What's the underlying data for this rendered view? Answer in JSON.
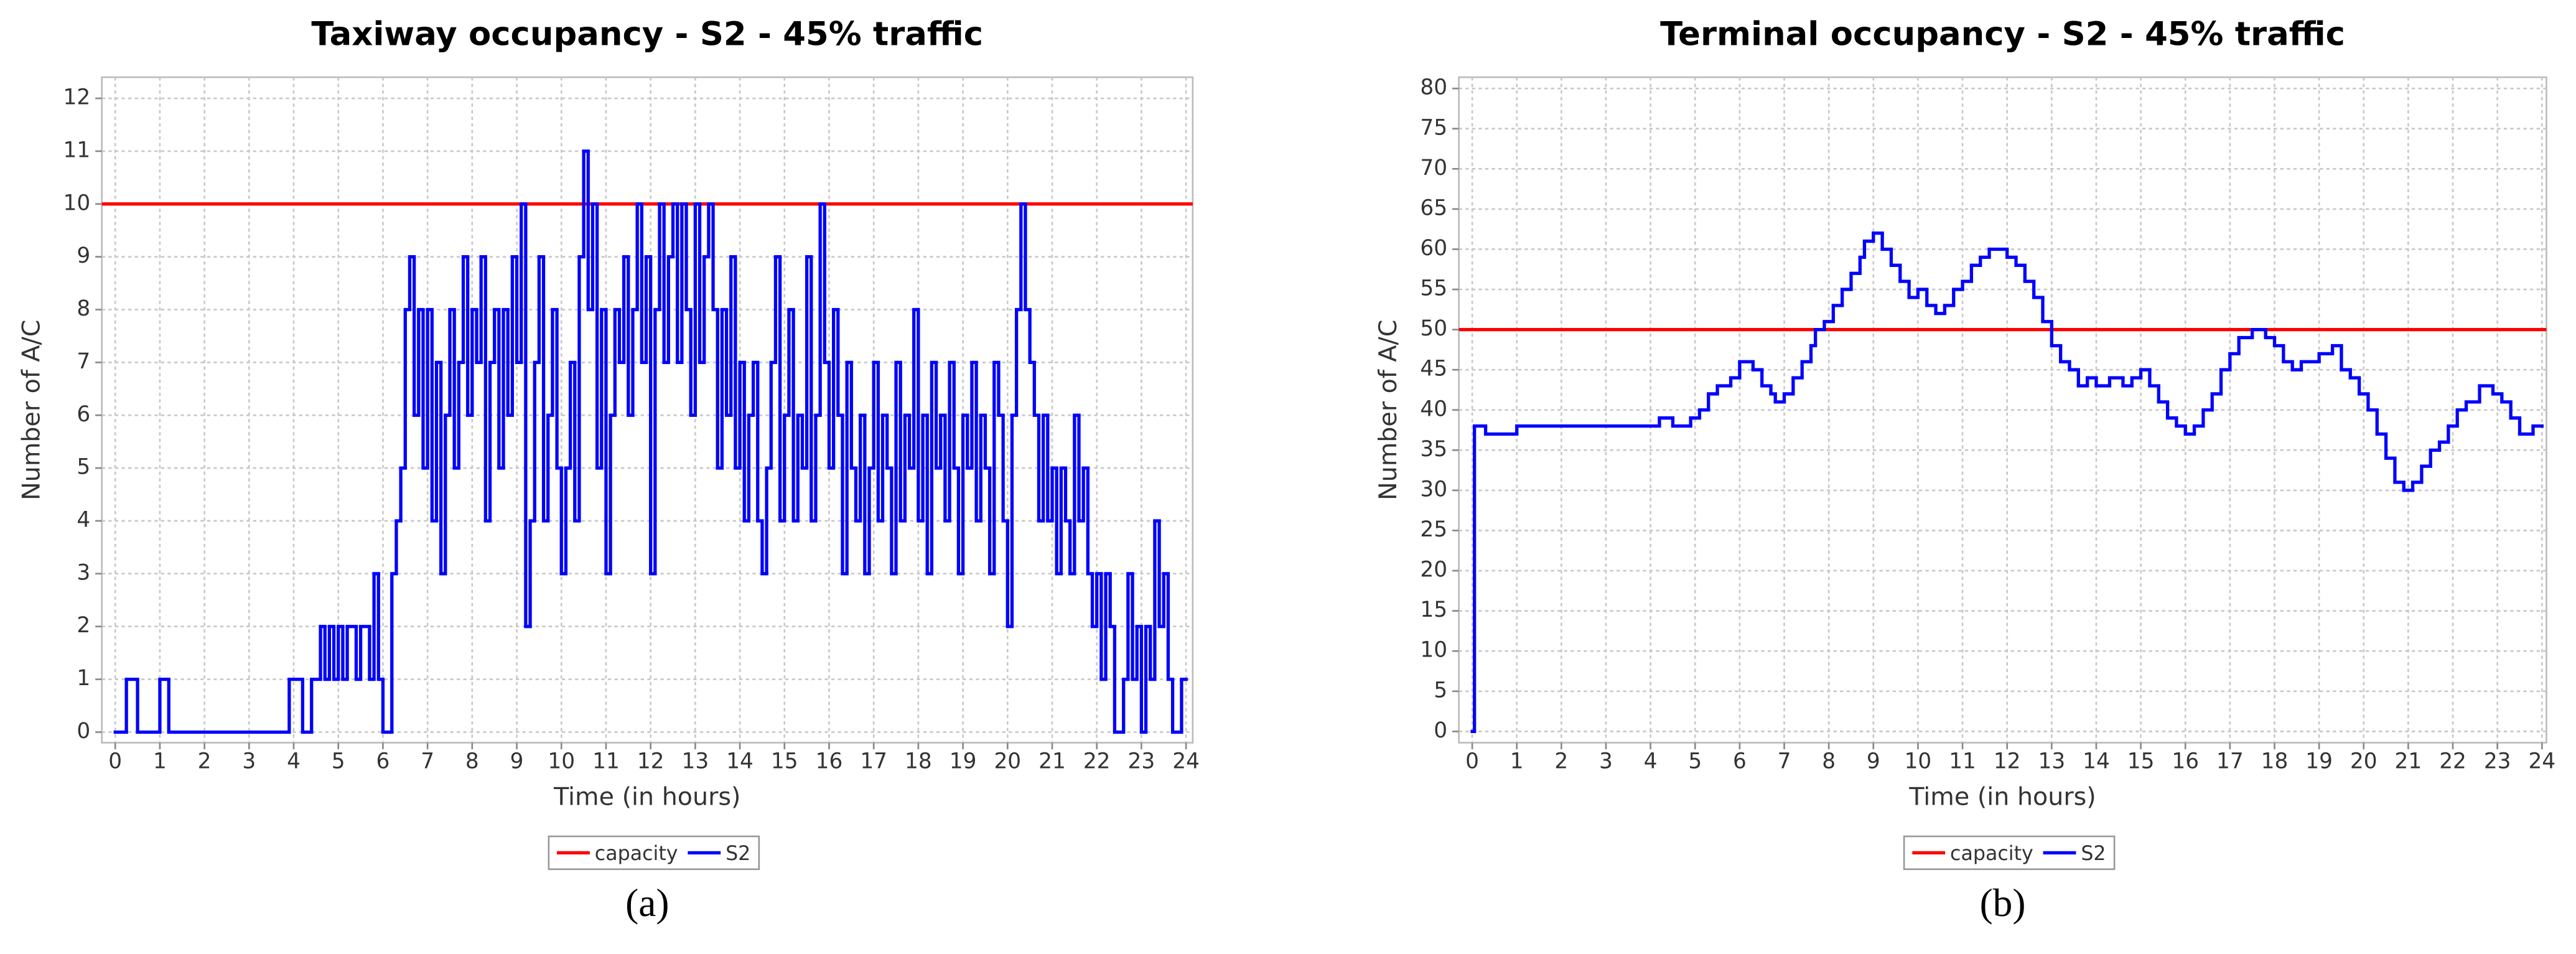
{
  "chart_data": [
    {
      "type": "line",
      "drawstyle": "steps-post",
      "title": "Taxiway occupancy - S2 - 45% traffic",
      "x_label": "Time (in hours)",
      "y_label": "Number of A/C",
      "caption": "(a)",
      "xlim": [
        -0.3,
        24.15
      ],
      "ylim": [
        -0.2,
        12.4
      ],
      "grid": true,
      "xticks": [
        0,
        1,
        2,
        3,
        4,
        5,
        6,
        7,
        8,
        9,
        10,
        11,
        12,
        13,
        14,
        15,
        16,
        17,
        18,
        19,
        20,
        21,
        22,
        23,
        24
      ],
      "yticks": [
        0,
        1,
        2,
        3,
        4,
        5,
        6,
        7,
        8,
        9,
        10,
        11,
        12
      ],
      "series": [
        {
          "name": "capacity",
          "color": "#ff0000",
          "values": [
            10
          ]
        },
        {
          "name": "S2",
          "color": "#0000ff",
          "x": [
            0,
            0.25,
            0.5,
            1,
            1.2,
            3.9,
            4.2,
            4.4,
            4.6,
            4.7,
            4.8,
            4.9,
            5.0,
            5.1,
            5.2,
            5.4,
            5.5,
            5.7,
            5.8,
            5.9,
            6.0,
            6.2,
            6.3,
            6.4,
            6.5,
            6.6,
            6.7,
            6.8,
            6.9,
            7.0,
            7.1,
            7.2,
            7.3,
            7.4,
            7.5,
            7.6,
            7.7,
            7.8,
            7.9,
            8.0,
            8.1,
            8.2,
            8.3,
            8.4,
            8.5,
            8.6,
            8.7,
            8.8,
            8.9,
            9.0,
            9.1,
            9.2,
            9.3,
            9.4,
            9.5,
            9.6,
            9.7,
            9.8,
            9.9,
            10.0,
            10.1,
            10.2,
            10.3,
            10.4,
            10.5,
            10.6,
            10.7,
            10.8,
            10.9,
            11.0,
            11.1,
            11.2,
            11.3,
            11.4,
            11.5,
            11.6,
            11.7,
            11.8,
            11.9,
            12.0,
            12.1,
            12.2,
            12.3,
            12.4,
            12.5,
            12.6,
            12.7,
            12.8,
            12.9,
            13.0,
            13.1,
            13.2,
            13.3,
            13.4,
            13.5,
            13.6,
            13.7,
            13.8,
            13.9,
            14.0,
            14.1,
            14.2,
            14.3,
            14.4,
            14.5,
            14.6,
            14.7,
            14.8,
            14.9,
            15.0,
            15.1,
            15.2,
            15.3,
            15.4,
            15.5,
            15.6,
            15.7,
            15.8,
            15.9,
            16.0,
            16.1,
            16.2,
            16.3,
            16.4,
            16.5,
            16.6,
            16.7,
            16.8,
            16.9,
            17.0,
            17.1,
            17.2,
            17.3,
            17.4,
            17.5,
            17.6,
            17.7,
            17.8,
            17.9,
            18.0,
            18.1,
            18.2,
            18.3,
            18.4,
            18.5,
            18.6,
            18.7,
            18.8,
            18.9,
            19.0,
            19.1,
            19.2,
            19.3,
            19.4,
            19.5,
            19.6,
            19.7,
            19.8,
            19.9,
            20.0,
            20.1,
            20.2,
            20.3,
            20.4,
            20.5,
            20.6,
            20.7,
            20.8,
            20.9,
            21.0,
            21.1,
            21.2,
            21.3,
            21.4,
            21.5,
            21.6,
            21.7,
            21.8,
            21.9,
            22.0,
            22.1,
            22.2,
            22.3,
            22.4,
            22.6,
            22.7,
            22.8,
            22.9,
            23.0,
            23.1,
            23.2,
            23.3,
            23.4,
            23.5,
            23.6,
            23.7,
            23.9,
            24
          ],
          "values": [
            0,
            1,
            0,
            1,
            0,
            1,
            0,
            1,
            2,
            1,
            2,
            1,
            2,
            1,
            2,
            1,
            2,
            1,
            3,
            1,
            0,
            3,
            4,
            5,
            8,
            9,
            6,
            8,
            5,
            8,
            4,
            7,
            3,
            6,
            8,
            5,
            7,
            9,
            6,
            8,
            7,
            9,
            4,
            7,
            8,
            5,
            8,
            6,
            9,
            7,
            10,
            2,
            4,
            7,
            9,
            4,
            6,
            8,
            5,
            3,
            5,
            7,
            4,
            9,
            11,
            8,
            10,
            5,
            8,
            3,
            6,
            8,
            7,
            9,
            6,
            8,
            10,
            7,
            9,
            3,
            8,
            10,
            7,
            9,
            10,
            7,
            10,
            8,
            6,
            10,
            7,
            9,
            10,
            8,
            5,
            8,
            6,
            9,
            5,
            7,
            4,
            6,
            7,
            4,
            3,
            5,
            7,
            9,
            4,
            6,
            8,
            4,
            6,
            5,
            9,
            4,
            6,
            10,
            7,
            5,
            8,
            6,
            3,
            7,
            5,
            4,
            6,
            3,
            5,
            7,
            4,
            6,
            5,
            3,
            7,
            4,
            6,
            5,
            8,
            4,
            6,
            3,
            7,
            5,
            6,
            4,
            7,
            5,
            3,
            6,
            5,
            7,
            4,
            6,
            5,
            3,
            7,
            6,
            4,
            2,
            6,
            8,
            10,
            8,
            7,
            6,
            4,
            6,
            4,
            5,
            3,
            5,
            4,
            3,
            6,
            4,
            5,
            3,
            2,
            3,
            1,
            3,
            2,
            0,
            1,
            3,
            1,
            2,
            0,
            2,
            1,
            4,
            2,
            3,
            1,
            0,
            1,
            1
          ]
        }
      ]
    },
    {
      "type": "line",
      "drawstyle": "steps-post",
      "title": "Terminal occupancy - S2 - 45% traffic",
      "x_label": "Time (in hours)",
      "y_label": "Number of A/C",
      "caption": "(b)",
      "xlim": [
        -0.3,
        24.1
      ],
      "ylim": [
        -1.4,
        81.4
      ],
      "grid": true,
      "xticks": [
        0,
        1,
        2,
        3,
        4,
        5,
        6,
        7,
        8,
        9,
        10,
        11,
        12,
        13,
        14,
        15,
        16,
        17,
        18,
        19,
        20,
        21,
        22,
        23,
        24
      ],
      "yticks": [
        0,
        5,
        10,
        15,
        20,
        25,
        30,
        35,
        40,
        45,
        50,
        55,
        60,
        65,
        70,
        75,
        80
      ],
      "series": [
        {
          "name": "capacity",
          "color": "#ff0000",
          "values": [
            50
          ]
        },
        {
          "name": "S2",
          "color": "#0000ff",
          "x": [
            0,
            0.05,
            0.3,
            1,
            4.2,
            4.5,
            4.9,
            5.1,
            5.3,
            5.5,
            5.8,
            6.0,
            6.3,
            6.5,
            6.7,
            6.8,
            7.0,
            7.2,
            7.4,
            7.6,
            7.7,
            7.9,
            8.1,
            8.3,
            8.5,
            8.7,
            8.8,
            9.0,
            9.2,
            9.4,
            9.6,
            9.8,
            10.0,
            10.2,
            10.4,
            10.6,
            10.8,
            11.0,
            11.2,
            11.4,
            11.6,
            12.0,
            12.2,
            12.4,
            12.6,
            12.8,
            13.0,
            13.2,
            13.4,
            13.6,
            13.8,
            14.0,
            14.3,
            14.6,
            14.8,
            15.0,
            15.2,
            15.4,
            15.6,
            15.8,
            16.0,
            16.2,
            16.4,
            16.6,
            16.8,
            17.0,
            17.2,
            17.5,
            17.8,
            18.0,
            18.2,
            18.4,
            18.6,
            19.0,
            19.3,
            19.5,
            19.7,
            19.9,
            20.1,
            20.3,
            20.5,
            20.7,
            20.9,
            21.1,
            21.3,
            21.5,
            21.7,
            21.9,
            22.1,
            22.3,
            22.6,
            22.9,
            23.1,
            23.3,
            23.5,
            23.8,
            24
          ],
          "values": [
            0,
            38,
            37,
            38,
            39,
            38,
            39,
            40,
            42,
            43,
            44,
            46,
            45,
            43,
            42,
            41,
            42,
            44,
            46,
            48,
            50,
            51,
            53,
            55,
            57,
            59,
            61,
            62,
            60,
            58,
            56,
            54,
            55,
            53,
            52,
            53,
            55,
            56,
            58,
            59,
            60,
            59,
            58,
            56,
            54,
            51,
            48,
            46,
            45,
            43,
            44,
            43,
            44,
            43,
            44,
            45,
            43,
            41,
            39,
            38,
            37,
            38,
            40,
            42,
            45,
            47,
            49,
            50,
            49,
            48,
            46,
            45,
            46,
            47,
            48,
            45,
            44,
            42,
            40,
            37,
            34,
            31,
            30,
            31,
            33,
            35,
            36,
            38,
            40,
            41,
            43,
            42,
            41,
            39,
            37,
            38,
            38
          ]
        }
      ]
    }
  ]
}
